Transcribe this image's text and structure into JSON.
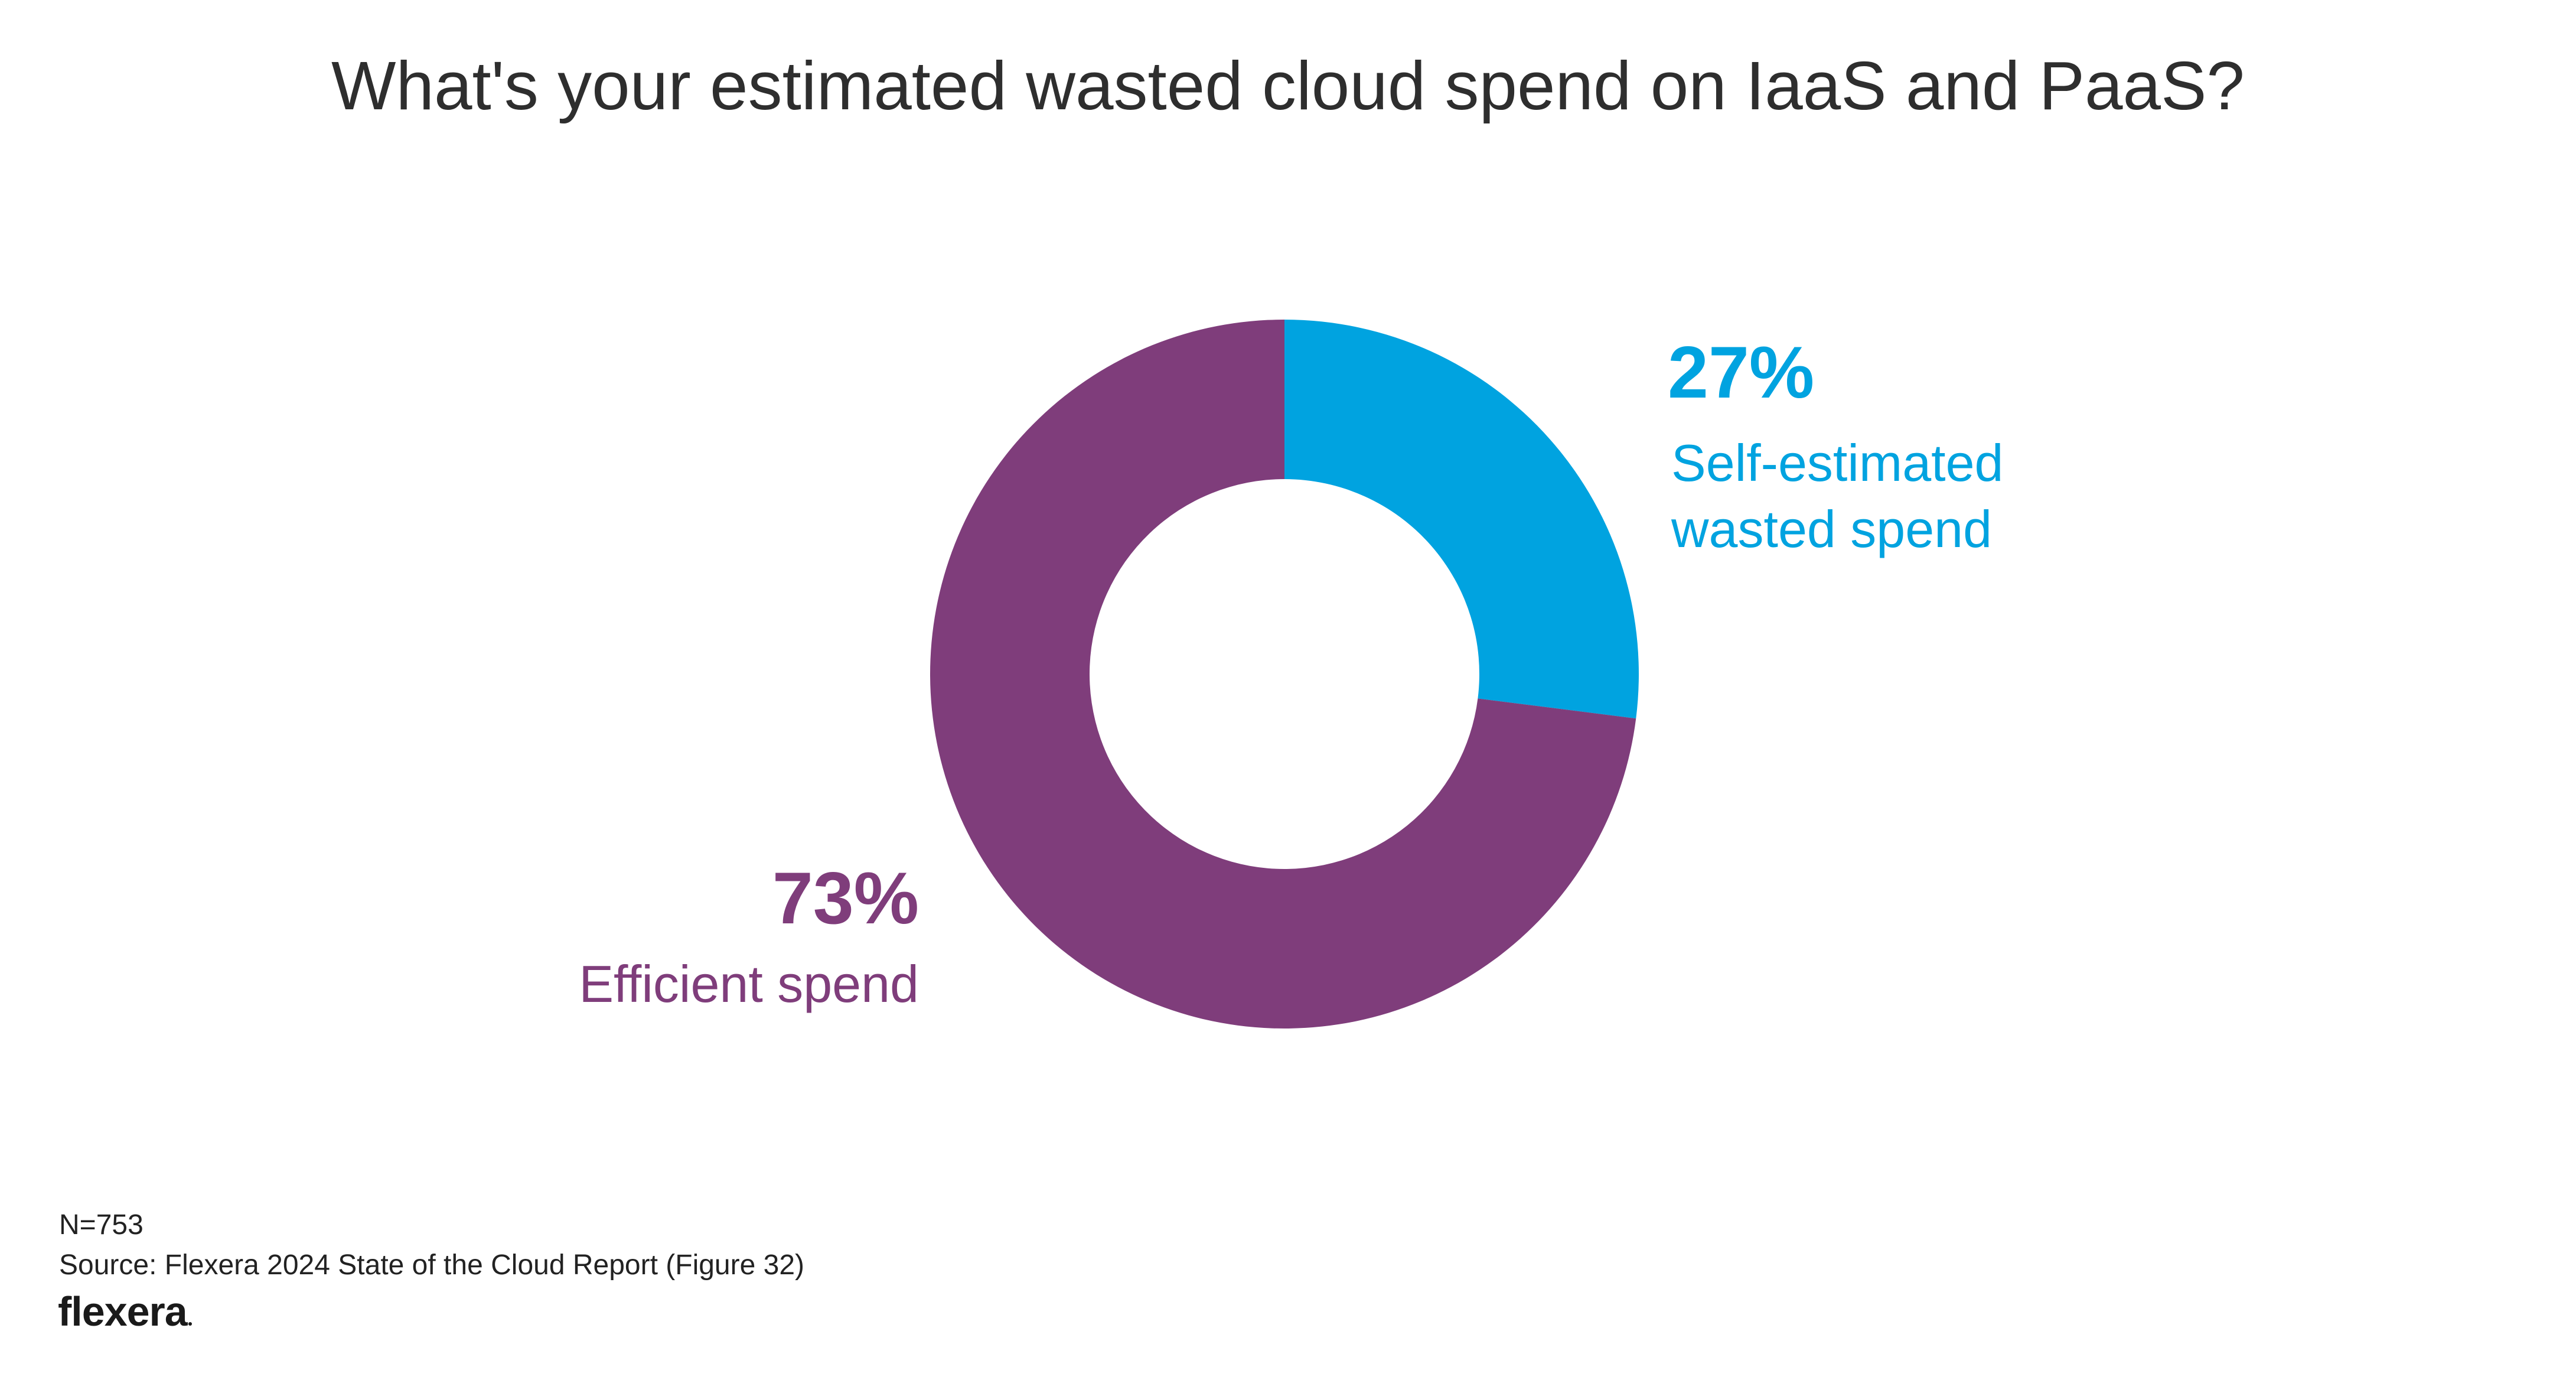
{
  "title": "What's your estimated wasted cloud spend on IaaS and PaaS?",
  "colors": {
    "wasted": "#00A3E0",
    "efficient": "#7F3D7B"
  },
  "chart_data": {
    "type": "pie",
    "subtype": "donut",
    "title": "What's your estimated wasted cloud spend on IaaS and PaaS?",
    "slices": [
      {
        "label": "Self-estimated wasted spend",
        "label_lines": [
          "Self-estimated",
          "wasted spend"
        ],
        "value": 27,
        "display": "27%",
        "color": "#00A3E0"
      },
      {
        "label": "Efficient spend",
        "label_lines": [
          "Efficient spend"
        ],
        "value": 73,
        "display": "73%",
        "color": "#7F3D7B"
      }
    ],
    "start_angle": "12 o'clock",
    "direction": "clockwise"
  },
  "footer": {
    "n": "N=753",
    "source": "Source: Flexera 2024 State of the Cloud Report (Figure 32)",
    "logo": "flexera"
  }
}
